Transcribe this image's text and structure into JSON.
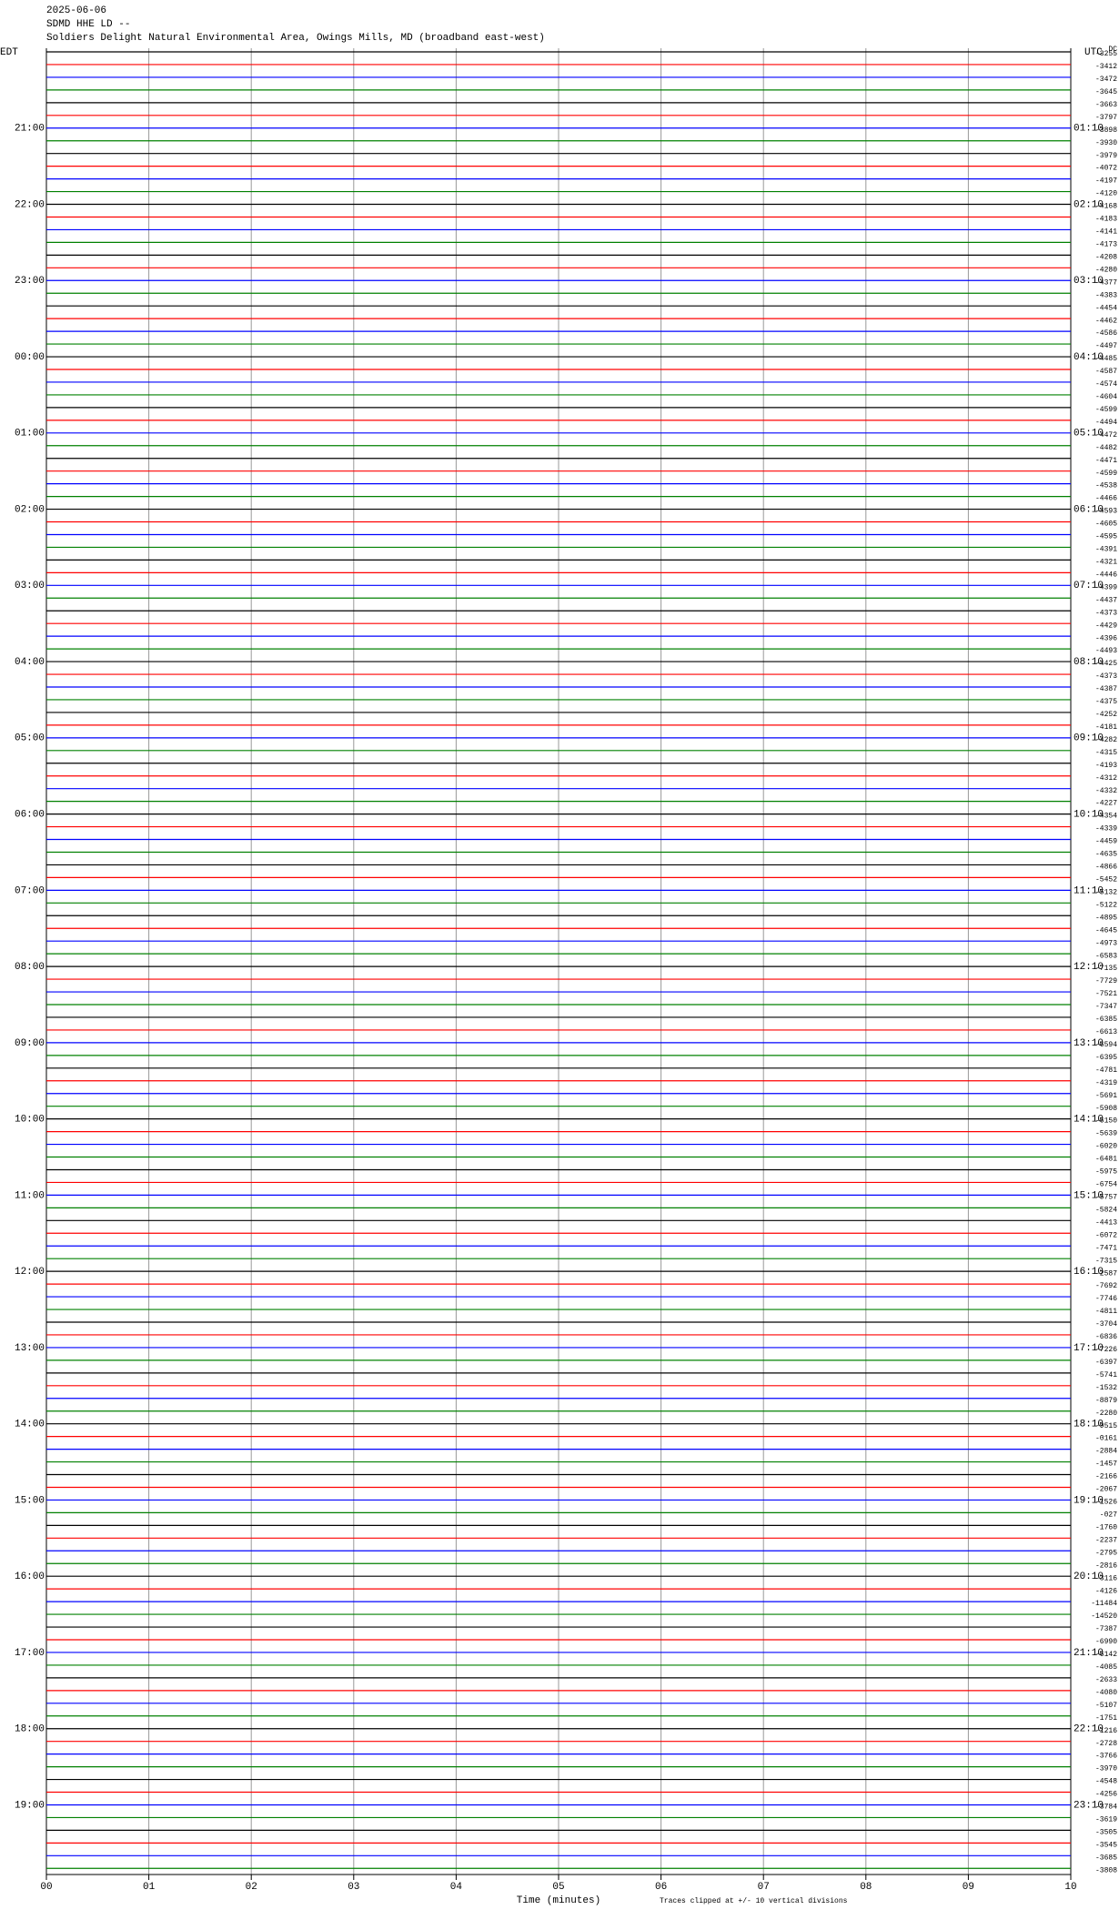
{
  "chart_data": {
    "type": "helicorder",
    "date": "2025-06-06",
    "station": "SDMD HHE LD --",
    "title": "Soldiers Delight Natural Environmental Area, Owings Mills, MD (broadband east-west)",
    "left_zone": "EDT",
    "right_zone": "UTC",
    "offset_header": "DC",
    "xlabel": "Time (minutes)",
    "note": "Traces clipped at +/- 10 vertical divisions",
    "xlim": [
      0,
      10
    ],
    "xticks": [
      {
        "value": 0,
        "label": "00"
      },
      {
        "value": 1,
        "label": "01"
      },
      {
        "value": 2,
        "label": "02"
      },
      {
        "value": 3,
        "label": "03"
      },
      {
        "value": 4,
        "label": "04"
      },
      {
        "value": 5,
        "label": "05"
      },
      {
        "value": 6,
        "label": "06"
      },
      {
        "value": 7,
        "label": "07"
      },
      {
        "value": 8,
        "label": "08"
      },
      {
        "value": 9,
        "label": "09"
      },
      {
        "value": 10,
        "label": "10"
      }
    ],
    "grid": true,
    "trace_colors": [
      "#000000",
      "#ff0000",
      "#0000ff",
      "#008000"
    ],
    "left_labels": [
      "21:00",
      "22:00",
      "23:00",
      "00:00",
      "01:00",
      "02:00",
      "03:00",
      "04:00",
      "05:00",
      "06:00",
      "07:00",
      "08:00",
      "09:00",
      "10:00",
      "11:00",
      "12:00",
      "13:00",
      "14:00",
      "15:00",
      "16:00",
      "17:00",
      "18:00",
      "19:00"
    ],
    "right_labels": [
      "01:10",
      "02:10",
      "03:10",
      "04:10",
      "05:10",
      "06:10",
      "07:10",
      "08:10",
      "09:10",
      "10:10",
      "11:10",
      "12:10",
      "13:10",
      "14:10",
      "15:10",
      "16:10",
      "17:10",
      "18:10",
      "19:10",
      "20:10",
      "21:10",
      "22:10",
      "23:10"
    ],
    "offsets": [
      -3255,
      -3412,
      -3472,
      -3645,
      -3663,
      -3797,
      -3898,
      -3930,
      -3979,
      -4072,
      -4197,
      -4120,
      -4168,
      -4183,
      -4141,
      -4173,
      -4208,
      -4280,
      -4377,
      -4383,
      -4454,
      -4462,
      -4586,
      -4497,
      -4485,
      -4587,
      -4574,
      -4604,
      -4599,
      -4494,
      -4472,
      -4482,
      -4471,
      -4599,
      -4538,
      -4466,
      -4593,
      -4605,
      -4595,
      -4391,
      -4321,
      -4446,
      -4399,
      -4437,
      -4373,
      -4429,
      -4396,
      -4493,
      -4425,
      -4373,
      -4387,
      -4375,
      -4252,
      -4181,
      -4282,
      -4315,
      -4193,
      -4312,
      -4332,
      -4227,
      -4354,
      -4339,
      -4459,
      -4635,
      -4866,
      -5452,
      -5132,
      -5122,
      -4895,
      -4645,
      -4973,
      -6583,
      -7135,
      -7729,
      -7521,
      -7347,
      -6385,
      -6613,
      -6594,
      -6395,
      -4781,
      -4319,
      -5691,
      -5908,
      -6150,
      -5639,
      -6020,
      -6481,
      -5975,
      -6754,
      -5757,
      -5824,
      -4413,
      -6072,
      -7471,
      -7315,
      -2587,
      -7692,
      -7746,
      -4811,
      -3704,
      -6836,
      -7226,
      -6397,
      -5741,
      -1532,
      -8879,
      -2280,
      -9515,
      {
        "value": -161,
        "label": "-0161"
      },
      -2884,
      -1457,
      -2166,
      -2067,
      -1526,
      {
        "value": -27,
        "label": "-027"
      },
      -1760,
      -2237,
      -2795,
      -2816,
      -3116,
      -4126,
      -11484,
      -14520,
      -7387,
      -6990,
      -6142,
      -4085,
      -2633,
      -4080,
      -5107,
      -1751,
      -1216,
      -2728,
      -3766,
      -3970,
      -4548,
      -4256,
      -3784,
      -3619,
      -3505,
      -3545,
      -3685,
      -3808
    ]
  }
}
